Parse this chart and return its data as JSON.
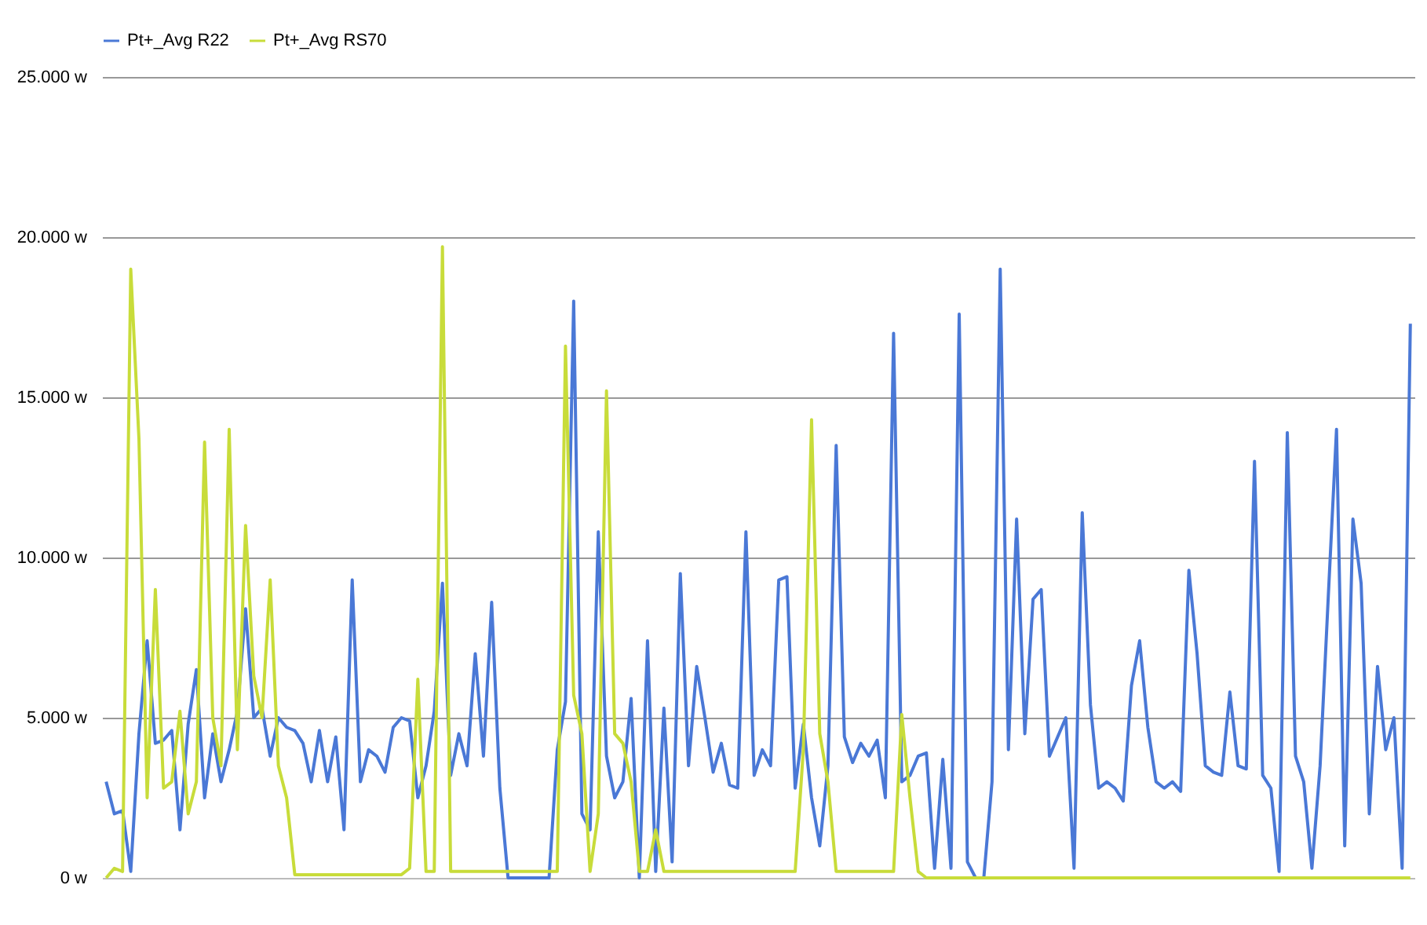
{
  "chart_data": {
    "type": "line",
    "categories": [
      null,
      null,
      null,
      null,
      null,
      null,
      null,
      null,
      null,
      null,
      null,
      null,
      null,
      null,
      null,
      null,
      null,
      null,
      null,
      null,
      null,
      null,
      null,
      null,
      null,
      null,
      null,
      null,
      null,
      null,
      null,
      null,
      null,
      null,
      null,
      null,
      null,
      null,
      null,
      null,
      null,
      null,
      null,
      null,
      null,
      null,
      null,
      null,
      null,
      null,
      null,
      null,
      null,
      null,
      null,
      null,
      null,
      null,
      null,
      null,
      null,
      null,
      null,
      null,
      null,
      null,
      null,
      null,
      null,
      null,
      null,
      null,
      null,
      null,
      null,
      null,
      null,
      null,
      null,
      null,
      null,
      null,
      null,
      null,
      null,
      null,
      null,
      null,
      null,
      null,
      null,
      null,
      null,
      null,
      null,
      null,
      null,
      null,
      null,
      null,
      null,
      null,
      null,
      null,
      null,
      null,
      null,
      null,
      null,
      null,
      null,
      null,
      null,
      null,
      null,
      null,
      null,
      null,
      null,
      null,
      null,
      null,
      null,
      null,
      null,
      null,
      null,
      null,
      null,
      null,
      null,
      null,
      null,
      null,
      null,
      null,
      null,
      null,
      null,
      null,
      null,
      null,
      null,
      null,
      null,
      null,
      null,
      null,
      null,
      null,
      null,
      null,
      null,
      null,
      null,
      null,
      null,
      null,
      null,
      null
    ],
    "series": [
      {
        "name": "Pt+_Avg R22",
        "color": "#4a78d6",
        "values": [
          3000,
          2000,
          2100,
          200,
          4500,
          7400,
          4200,
          4300,
          4600,
          1500,
          4800,
          6500,
          2500,
          4500,
          3000,
          4000,
          5200,
          8400,
          5000,
          5300,
          3800,
          5000,
          4700,
          4600,
          4200,
          3000,
          4600,
          3000,
          4400,
          1500,
          9300,
          3000,
          4000,
          3800,
          3300,
          4700,
          5000,
          4900,
          2500,
          3500,
          5200,
          9200,
          3200,
          4500,
          3500,
          7000,
          3800,
          8600,
          2800,
          0,
          0,
          0,
          0,
          0,
          0,
          4000,
          5500,
          18000,
          2000,
          1500,
          10800,
          3800,
          2500,
          3000,
          5600,
          0,
          7400,
          200,
          5300,
          500,
          9500,
          3500,
          6600,
          5000,
          3300,
          4200,
          2900,
          2800,
          10800,
          3200,
          4000,
          3500,
          9300,
          9400,
          2800,
          4800,
          2500,
          1000,
          3500,
          13500,
          4400,
          3600,
          4200,
          3800,
          4300,
          2500,
          17000,
          3000,
          3200,
          3800,
          3900,
          300,
          3700,
          300,
          17600,
          500,
          0,
          0,
          3000,
          19000,
          4000,
          11200,
          4500,
          8700,
          9000,
          3800,
          4400,
          5000,
          300,
          11400,
          5400,
          2800,
          3000,
          2800,
          2400,
          6000,
          7400,
          4700,
          3000,
          2800,
          3000,
          2700,
          9600,
          7000,
          3500,
          3300,
          3200,
          5800,
          3500,
          3400,
          13000,
          3200,
          2800,
          200,
          13900,
          3800,
          3000,
          300,
          3500,
          8800,
          14000,
          1000,
          11200,
          9200,
          2000,
          6600,
          4000,
          5000,
          300,
          17300
        ]
      },
      {
        "name": "Pt+_Avg RS70",
        "color": "#c8dc3a",
        "values": [
          0,
          300,
          200,
          19000,
          13700,
          2500,
          9000,
          2800,
          3000,
          5200,
          2000,
          3000,
          13600,
          5000,
          3500,
          14000,
          4000,
          11000,
          6300,
          5000,
          9300,
          3500,
          2500,
          100,
          100,
          100,
          100,
          100,
          100,
          100,
          100,
          100,
          100,
          100,
          100,
          100,
          100,
          300,
          6200,
          200,
          200,
          19700,
          200,
          200,
          200,
          200,
          200,
          200,
          200,
          200,
          200,
          200,
          200,
          200,
          200,
          200,
          16600,
          5700,
          4500,
          200,
          2000,
          15200,
          4500,
          4200,
          3000,
          200,
          200,
          1500,
          200,
          200,
          200,
          200,
          200,
          200,
          200,
          200,
          200,
          200,
          200,
          200,
          200,
          200,
          200,
          200,
          200,
          4000,
          14300,
          4500,
          3000,
          200,
          200,
          200,
          200,
          200,
          200,
          200,
          200,
          5100,
          2500,
          200,
          0,
          0,
          0,
          0,
          0,
          0,
          0,
          0,
          0,
          0,
          0,
          0,
          0,
          0,
          0,
          0,
          0,
          0,
          0,
          0,
          0,
          0,
          0,
          0,
          0,
          0,
          0,
          0,
          0,
          0,
          0,
          0,
          0,
          0,
          0,
          0,
          0,
          0,
          0,
          0,
          0,
          0,
          0,
          0,
          0,
          0,
          0,
          0,
          0,
          0,
          0,
          0,
          0,
          0,
          0,
          0,
          0,
          0,
          0,
          0
        ]
      }
    ],
    "ylim": [
      0,
      25000
    ],
    "yticks": [
      {
        "value": 0,
        "label": "0 w"
      },
      {
        "value": 5000,
        "label": "5.000 w"
      },
      {
        "value": 10000,
        "label": "10.000 w"
      },
      {
        "value": 15000,
        "label": "15.000 w"
      },
      {
        "value": 20000,
        "label": "20.000 w"
      },
      {
        "value": 25000,
        "label": "25.000 w"
      }
    ],
    "grid": "y",
    "legend": "top",
    "tick_labels": "y"
  }
}
